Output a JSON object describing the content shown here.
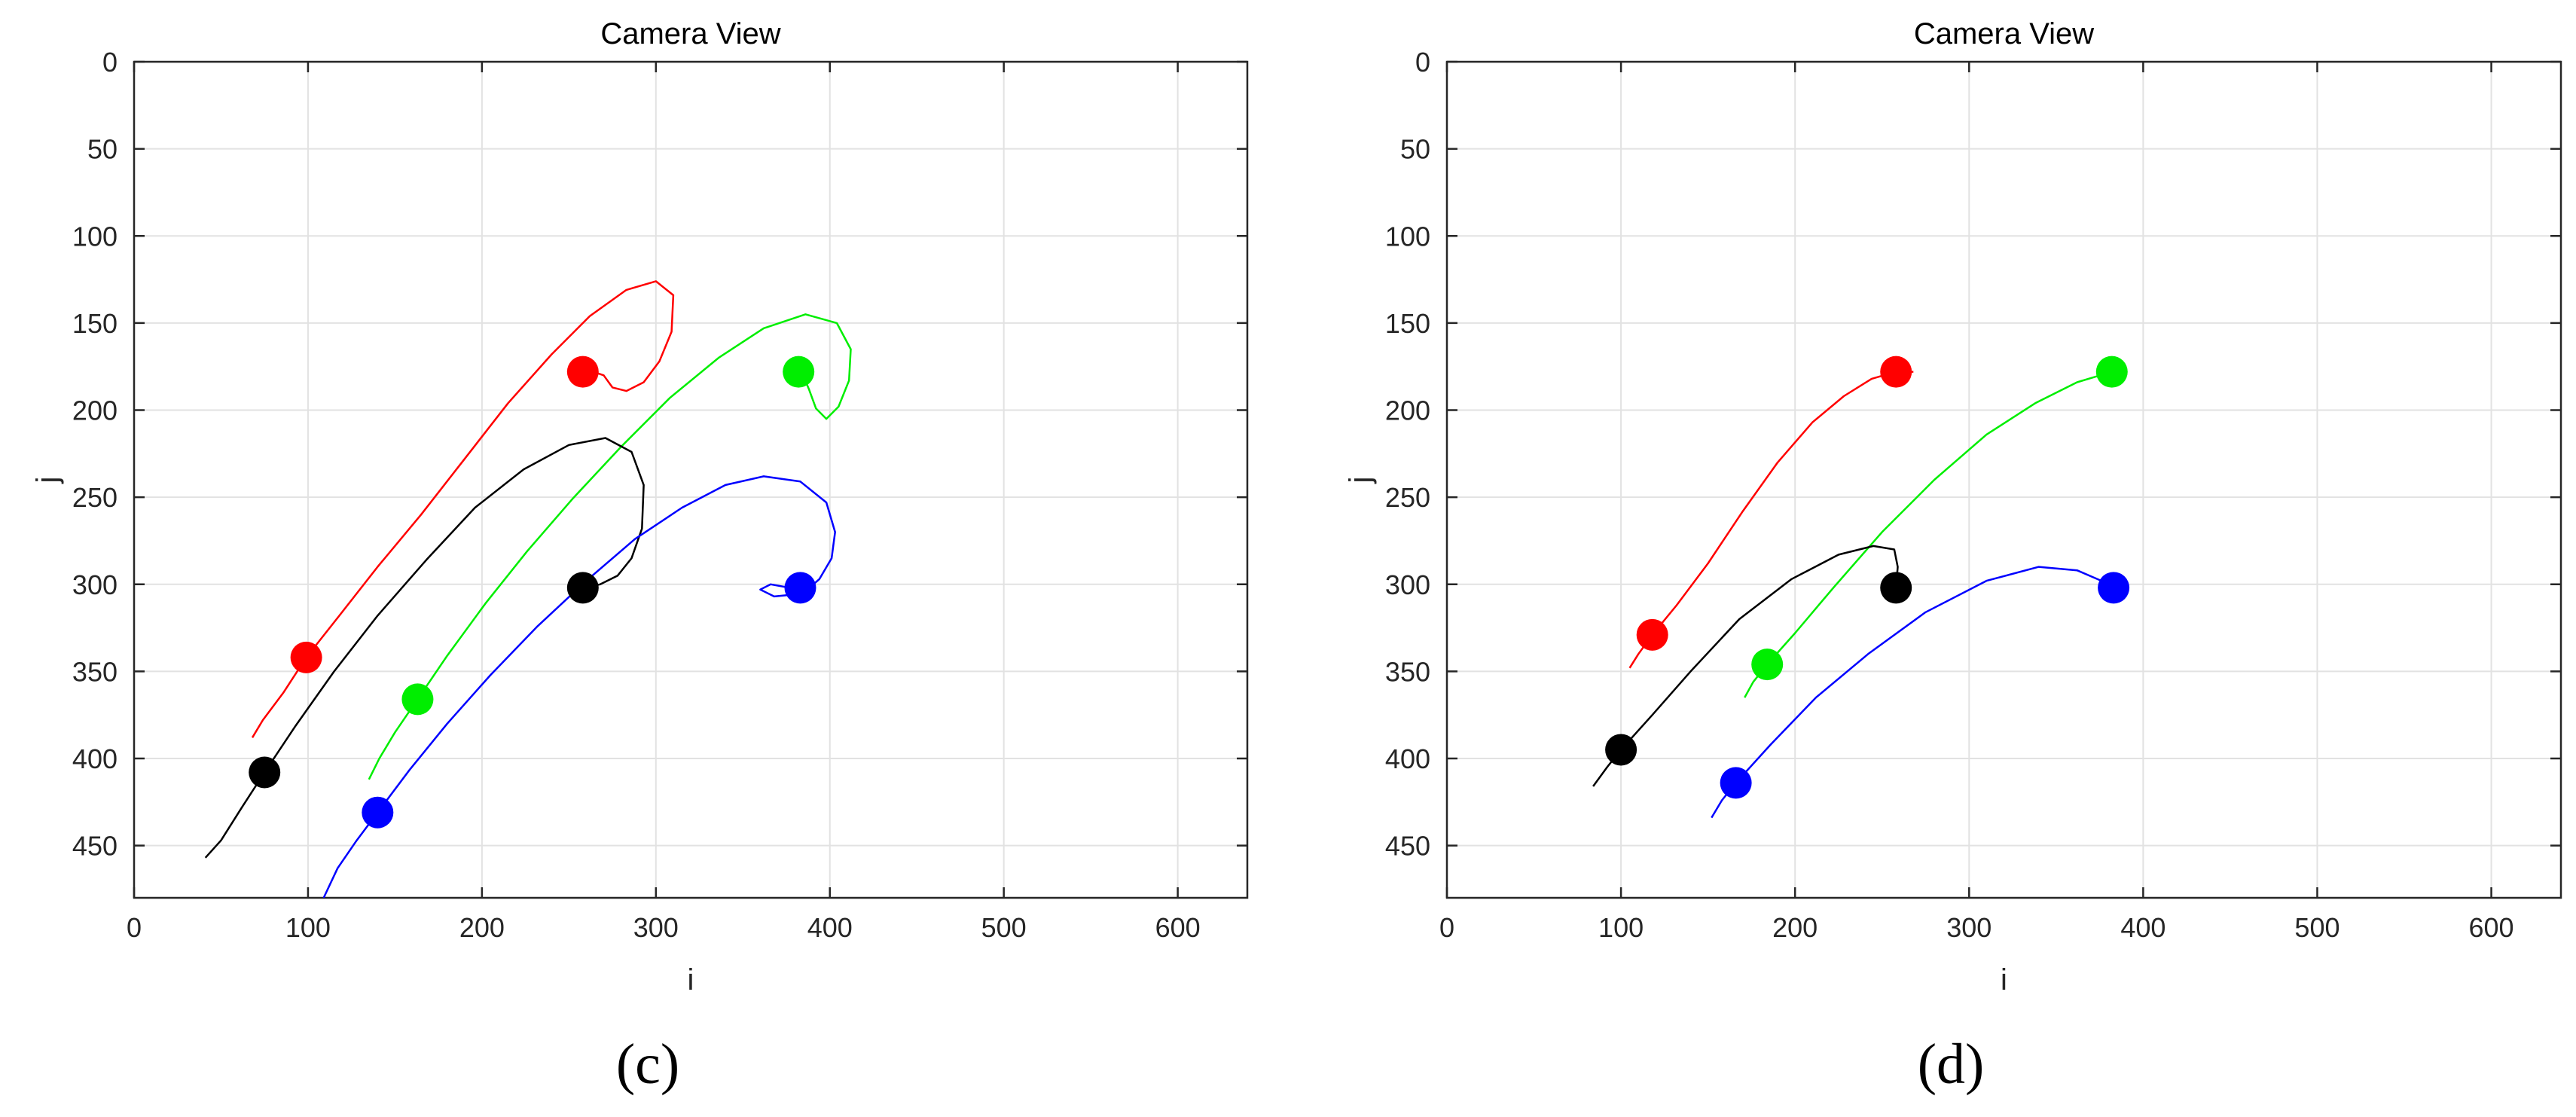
{
  "figure": {
    "captions": [
      "(c)",
      "(d)"
    ]
  },
  "chart_data": [
    {
      "type": "line",
      "title": "Camera View",
      "xlabel": "i",
      "ylabel": "j",
      "xlim": [
        0,
        640
      ],
      "ylim": [
        0,
        480
      ],
      "y_reversed": true,
      "grid": true,
      "xticks": [
        0,
        100,
        200,
        300,
        400,
        500,
        600
      ],
      "yticks": [
        0,
        50,
        100,
        150,
        200,
        250,
        300,
        350,
        400,
        450
      ],
      "series": [
        {
          "color": "#ff0000",
          "marker": [
            99,
            342
          ],
          "goal": [
            258,
            178
          ],
          "points": [
            [
              68,
              388
            ],
            [
              74,
              378
            ],
            [
              86,
              362
            ],
            [
              99,
              342
            ],
            [
              118,
              318
            ],
            [
              140,
              290
            ],
            [
              165,
              260
            ],
            [
              190,
              228
            ],
            [
              215,
              196
            ],
            [
              240,
              168
            ],
            [
              262,
              146
            ],
            [
              283,
              131
            ],
            [
              300,
              126
            ],
            [
              310,
              134
            ],
            [
              309,
              155
            ],
            [
              302,
              172
            ],
            [
              293,
              184
            ],
            [
              283,
              189
            ],
            [
              275,
              187
            ],
            [
              270,
              180
            ],
            [
              264,
              178
            ],
            [
              258,
              178
            ]
          ]
        },
        {
          "color": "#00ee00",
          "marker": [
            163,
            366
          ],
          "goal": [
            382,
            178
          ],
          "points": [
            [
              135,
              412
            ],
            [
              141,
              400
            ],
            [
              150,
              385
            ],
            [
              163,
              366
            ],
            [
              180,
              341
            ],
            [
              202,
              311
            ],
            [
              226,
              281
            ],
            [
              252,
              251
            ],
            [
              280,
              221
            ],
            [
              308,
              193
            ],
            [
              336,
              170
            ],
            [
              362,
              153
            ],
            [
              386,
              145
            ],
            [
              404,
              150
            ],
            [
              412,
              165
            ],
            [
              411,
              183
            ],
            [
              405,
              198
            ],
            [
              398,
              205
            ],
            [
              392,
              199
            ],
            [
              388,
              188
            ],
            [
              385,
              181
            ],
            [
              382,
              178
            ]
          ]
        },
        {
          "color": "#000000",
          "marker": [
            75,
            408
          ],
          "goal": [
            258,
            302
          ],
          "points": [
            [
              41,
              457
            ],
            [
              50,
              447
            ],
            [
              62,
              428
            ],
            [
              75,
              408
            ],
            [
              93,
              381
            ],
            [
              115,
              350
            ],
            [
              140,
              318
            ],
            [
              168,
              286
            ],
            [
              196,
              256
            ],
            [
              224,
              234
            ],
            [
              250,
              220
            ],
            [
              271,
              216
            ],
            [
              286,
              224
            ],
            [
              293,
              243
            ],
            [
              292,
              268
            ],
            [
              286,
              285
            ],
            [
              278,
              295
            ],
            [
              268,
              300
            ],
            [
              258,
              302
            ]
          ]
        },
        {
          "color": "#0000ff",
          "marker": [
            140,
            431
          ],
          "goal": [
            383,
            302
          ],
          "points": [
            [
              109,
              480
            ],
            [
              117,
              463
            ],
            [
              128,
              447
            ],
            [
              140,
              431
            ],
            [
              158,
              407
            ],
            [
              180,
              380
            ],
            [
              205,
              352
            ],
            [
              232,
              324
            ],
            [
              260,
              298
            ],
            [
              288,
              274
            ],
            [
              315,
              256
            ],
            [
              340,
              243
            ],
            [
              362,
              238
            ],
            [
              383,
              241
            ],
            [
              398,
              253
            ],
            [
              403,
              270
            ],
            [
              401,
              285
            ],
            [
              394,
              297
            ],
            [
              386,
              304
            ],
            [
              378,
              306
            ],
            [
              368,
              307
            ],
            [
              360,
              303
            ],
            [
              366,
              300
            ],
            [
              377,
              302
            ],
            [
              383,
              302
            ]
          ]
        }
      ]
    },
    {
      "type": "line",
      "title": "Camera View",
      "xlabel": "i",
      "ylabel": "j",
      "xlim": [
        0,
        640
      ],
      "ylim": [
        0,
        480
      ],
      "y_reversed": true,
      "grid": true,
      "xticks": [
        0,
        100,
        200,
        300,
        400,
        500,
        600
      ],
      "yticks": [
        0,
        50,
        100,
        150,
        200,
        250,
        300,
        350,
        400,
        450
      ],
      "series": [
        {
          "color": "#ff0000",
          "marker": [
            118,
            329
          ],
          "goal": [
            258,
            178
          ],
          "points": [
            [
              105,
              348
            ],
            [
              110,
              340
            ],
            [
              118,
              329
            ],
            [
              132,
              312
            ],
            [
              150,
              288
            ],
            [
              170,
              258
            ],
            [
              190,
              230
            ],
            [
              210,
              207
            ],
            [
              228,
              192
            ],
            [
              244,
              182
            ],
            [
              258,
              178
            ],
            [
              268,
              178
            ]
          ]
        },
        {
          "color": "#00ee00",
          "marker": [
            184,
            346
          ],
          "goal": [
            382,
            178
          ],
          "points": [
            [
              171,
              365
            ],
            [
              176,
              356
            ],
            [
              184,
              346
            ],
            [
              200,
              328
            ],
            [
              222,
              302
            ],
            [
              250,
              270
            ],
            [
              280,
              240
            ],
            [
              310,
              214
            ],
            [
              338,
              196
            ],
            [
              362,
              184
            ],
            [
              382,
              178
            ]
          ]
        },
        {
          "color": "#000000",
          "marker": [
            100,
            395
          ],
          "goal": [
            258,
            302
          ],
          "points": [
            [
              84,
              416
            ],
            [
              92,
              405
            ],
            [
              100,
              395
            ],
            [
              118,
              375
            ],
            [
              140,
              350
            ],
            [
              168,
              320
            ],
            [
              198,
              297
            ],
            [
              225,
              283
            ],
            [
              245,
              278
            ],
            [
              257,
              280
            ],
            [
              259,
              290
            ],
            [
              258,
              302
            ]
          ]
        },
        {
          "color": "#0000ff",
          "marker": [
            166,
            414
          ],
          "goal": [
            383,
            302
          ],
          "points": [
            [
              152,
              434
            ],
            [
              158,
              424
            ],
            [
              166,
              414
            ],
            [
              186,
              392
            ],
            [
              212,
              365
            ],
            [
              242,
              340
            ],
            [
              275,
              316
            ],
            [
              310,
              298
            ],
            [
              340,
              290
            ],
            [
              362,
              292
            ],
            [
              376,
              298
            ],
            [
              383,
              302
            ]
          ]
        }
      ]
    }
  ]
}
